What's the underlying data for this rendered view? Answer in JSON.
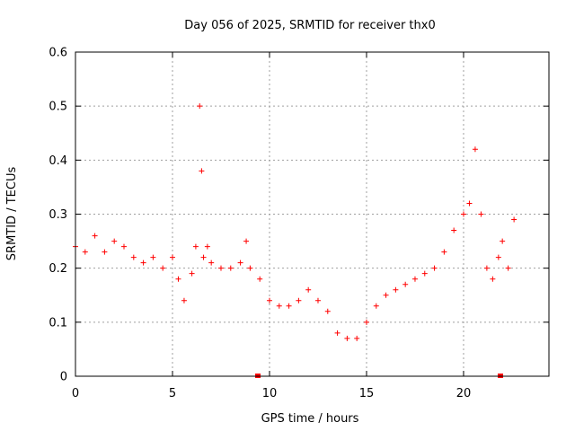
{
  "chart_data": {
    "type": "scatter",
    "title": "Day 056 of 2025, SRMTID for receiver thx0",
    "xlabel": "GPS time / hours",
    "ylabel": "SRMTID / TECUs",
    "xlim": [
      0,
      24.4
    ],
    "ylim": [
      0,
      0.6
    ],
    "xticks": [
      0,
      5,
      10,
      15,
      20
    ],
    "yticks": [
      0,
      0.1,
      0.2,
      0.3,
      0.4,
      0.5,
      0.6
    ],
    "xtick_labels": [
      "0",
      "5",
      "10",
      "15",
      "20"
    ],
    "ytick_labels": [
      "0",
      "0.1",
      "0.2",
      "0.3",
      "0.4",
      "0.5",
      "0.6"
    ],
    "grid": true,
    "marker": "plus",
    "color": "#ff0000",
    "legend": "none",
    "series": [
      {
        "name": "SRMTID",
        "x": [
          0.0,
          0.5,
          1.0,
          1.5,
          2.0,
          2.5,
          3.0,
          3.5,
          4.0,
          4.5,
          5.0,
          5.3,
          5.6,
          6.0,
          6.2,
          6.4,
          6.5,
          6.6,
          6.8,
          7.0,
          7.5,
          8.0,
          8.5,
          8.8,
          9.0,
          9.5,
          10.0,
          10.5,
          11.0,
          11.5,
          12.0,
          12.5,
          13.0,
          13.5,
          14.0,
          14.5,
          15.0,
          15.5,
          16.0,
          16.5,
          17.0,
          17.5,
          18.0,
          18.5,
          19.0,
          19.5,
          20.0,
          20.3,
          20.6,
          20.9,
          21.2,
          21.5,
          21.8,
          22.0,
          22.3,
          22.6
        ],
        "y": [
          0.24,
          0.23,
          0.26,
          0.23,
          0.25,
          0.24,
          0.22,
          0.21,
          0.22,
          0.2,
          0.22,
          0.18,
          0.14,
          0.19,
          0.24,
          0.5,
          0.38,
          0.22,
          0.24,
          0.21,
          0.2,
          0.2,
          0.21,
          0.25,
          0.2,
          0.18,
          0.14,
          0.13,
          0.13,
          0.14,
          0.16,
          0.14,
          0.12,
          0.08,
          0.07,
          0.07,
          0.1,
          0.13,
          0.15,
          0.16,
          0.17,
          0.18,
          0.19,
          0.2,
          0.23,
          0.27,
          0.3,
          0.32,
          0.42,
          0.3,
          0.2,
          0.18,
          0.22,
          0.25,
          0.2,
          0.29
        ]
      }
    ],
    "baseline_marks_x": [
      9.4,
      21.9
    ]
  }
}
